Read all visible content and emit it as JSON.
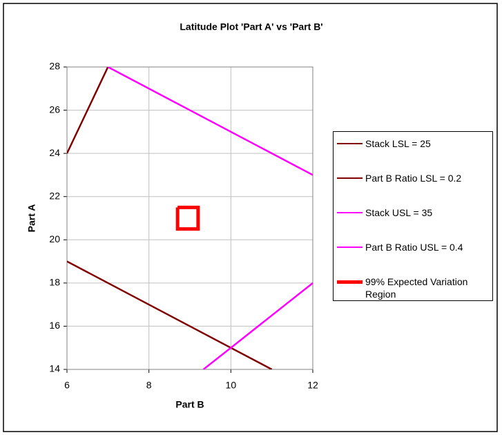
{
  "chart_data": {
    "type": "line",
    "title": "Latitude Plot 'Part A' vs 'Part B'",
    "x_label": "Part B",
    "y_label": "Part A",
    "xlim": [
      6,
      12
    ],
    "xticks": [
      6,
      8,
      10,
      12
    ],
    "ylim": [
      14,
      28
    ],
    "yticks": [
      14,
      16,
      18,
      20,
      22,
      24,
      26,
      28
    ],
    "grid": true,
    "legend": "right",
    "series": [
      {
        "name": "Stack LSL = 25",
        "color": "#800000",
        "x": [
          6,
          11
        ],
        "values": [
          19,
          14
        ]
      },
      {
        "name": "Part B Ratio LSL = 0.2",
        "color": "#800000",
        "x": [
          6,
          7
        ],
        "values": [
          24,
          28
        ]
      },
      {
        "name": "Stack USL = 35",
        "color": "#ff00ff",
        "x": [
          7,
          12
        ],
        "values": [
          28,
          23
        ]
      },
      {
        "name": "Part B Ratio USL = 0.4",
        "color": "#ff00ff",
        "x": [
          9.33,
          10,
          12
        ],
        "values": [
          14,
          15,
          18
        ]
      },
      {
        "name": "99% Expected Variation Region",
        "color": "#ff0000",
        "x": [
          8.7,
          9.2,
          9.2,
          8.7,
          8.7
        ],
        "values": [
          21.5,
          21.5,
          20.5,
          20.5,
          21.5
        ]
      }
    ]
  }
}
